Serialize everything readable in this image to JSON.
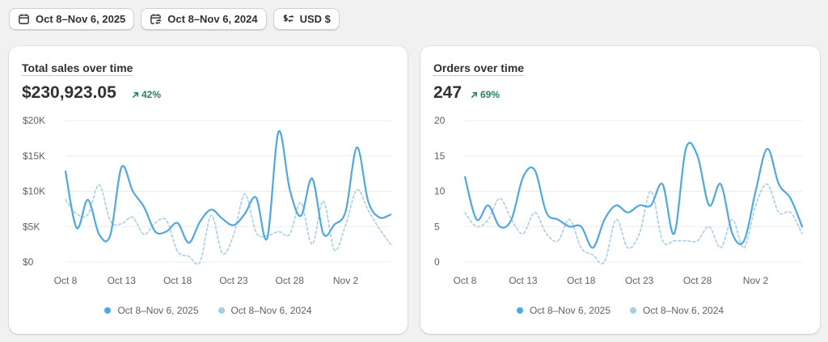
{
  "toolbar": {
    "date_range": "Oct 8–Nov 6, 2025",
    "compare_range": "Oct 8–Nov 6, 2024",
    "currency": "USD $"
  },
  "colors": {
    "current": "#4fa8e0",
    "previous": "#a6cde9",
    "positive": "#29845a"
  },
  "cards": [
    {
      "title": "Total sales over time",
      "value": "$230,923.05",
      "change": "42%",
      "legend": [
        "Oct 8–Nov 6, 2025",
        "Oct 8–Nov 6, 2024"
      ]
    },
    {
      "title": "Orders over time",
      "value": "247",
      "change": "69%",
      "legend": [
        "Oct 8–Nov 6, 2025",
        "Oct 8–Nov 6, 2024"
      ]
    }
  ],
  "chart_data": [
    {
      "type": "line",
      "title": "Total sales over time",
      "xlabel": "",
      "ylabel": "",
      "ylim": [
        0,
        20000
      ],
      "y_ticks": [
        "$0",
        "$5K",
        "$10K",
        "$15K",
        "$20K"
      ],
      "y_tick_values": [
        0,
        5000,
        10000,
        15000,
        20000
      ],
      "x": [
        "Oct 8",
        "Oct 9",
        "Oct 10",
        "Oct 11",
        "Oct 12",
        "Oct 13",
        "Oct 14",
        "Oct 15",
        "Oct 16",
        "Oct 17",
        "Oct 18",
        "Oct 19",
        "Oct 20",
        "Oct 21",
        "Oct 22",
        "Oct 23",
        "Oct 24",
        "Oct 25",
        "Oct 26",
        "Oct 27",
        "Oct 28",
        "Oct 29",
        "Oct 30",
        "Oct 31",
        "Nov 1",
        "Nov 2",
        "Nov 3",
        "Nov 4",
        "Nov 5",
        "Nov 6"
      ],
      "x_ticks": [
        "Oct 8",
        "Oct 13",
        "Oct 18",
        "Oct 23",
        "Oct 28",
        "Nov 2"
      ],
      "x_tick_index": [
        0,
        5,
        10,
        15,
        20,
        25
      ],
      "grid": true,
      "legend_position": "bottom",
      "series": [
        {
          "name": "Oct 8–Nov 6, 2025",
          "style": "solid",
          "values": [
            12800,
            4800,
            8800,
            3900,
            3800,
            13400,
            10000,
            7800,
            4300,
            4300,
            5500,
            2700,
            5700,
            7400,
            6100,
            5200,
            6800,
            9100,
            3400,
            18400,
            10300,
            6500,
            11800,
            4000,
            5300,
            7200,
            16200,
            8600,
            6300,
            6700
          ]
        },
        {
          "name": "Oct 8–Nov 6, 2024",
          "style": "dashed",
          "values": [
            8800,
            6800,
            6700,
            10900,
            5800,
            5400,
            6300,
            3900,
            5500,
            5900,
            1500,
            800,
            0,
            6600,
            1200,
            3800,
            9600,
            4200,
            3700,
            4300,
            3900,
            8400,
            2500,
            8600,
            1700,
            5300,
            10200,
            7300,
            4700,
            2500
          ]
        }
      ]
    },
    {
      "type": "line",
      "title": "Orders over time",
      "xlabel": "",
      "ylabel": "",
      "ylim": [
        0,
        20
      ],
      "y_ticks": [
        "0",
        "5",
        "10",
        "15",
        "20"
      ],
      "y_tick_values": [
        0,
        5,
        10,
        15,
        20
      ],
      "x": [
        "Oct 8",
        "Oct 9",
        "Oct 10",
        "Oct 11",
        "Oct 12",
        "Oct 13",
        "Oct 14",
        "Oct 15",
        "Oct 16",
        "Oct 17",
        "Oct 18",
        "Oct 19",
        "Oct 20",
        "Oct 21",
        "Oct 22",
        "Oct 23",
        "Oct 24",
        "Oct 25",
        "Oct 26",
        "Oct 27",
        "Oct 28",
        "Oct 29",
        "Oct 30",
        "Oct 31",
        "Nov 1",
        "Nov 2",
        "Nov 3",
        "Nov 4",
        "Nov 5",
        "Nov 6"
      ],
      "x_ticks": [
        "Oct 8",
        "Oct 13",
        "Oct 18",
        "Oct 23",
        "Oct 28",
        "Nov 2"
      ],
      "x_tick_index": [
        0,
        5,
        10,
        15,
        20,
        25
      ],
      "grid": true,
      "legend_position": "bottom",
      "series": [
        {
          "name": "Oct 8–Nov 6, 2025",
          "style": "solid",
          "values": [
            12,
            6,
            8,
            5,
            6,
            12,
            13,
            7,
            6,
            5,
            5,
            2,
            6,
            8,
            7,
            8,
            8,
            11,
            4,
            16,
            15,
            8,
            11,
            4,
            3,
            10,
            16,
            11,
            9,
            5
          ]
        },
        {
          "name": "Oct 8–Nov 6, 2024",
          "style": "dashed",
          "values": [
            7,
            5,
            6,
            9,
            6,
            4,
            7,
            4,
            3,
            6,
            2,
            1,
            0,
            6,
            2,
            4,
            10,
            3,
            3,
            3,
            3,
            5,
            2,
            6,
            2,
            8,
            11,
            7,
            7,
            4
          ]
        }
      ]
    }
  ]
}
